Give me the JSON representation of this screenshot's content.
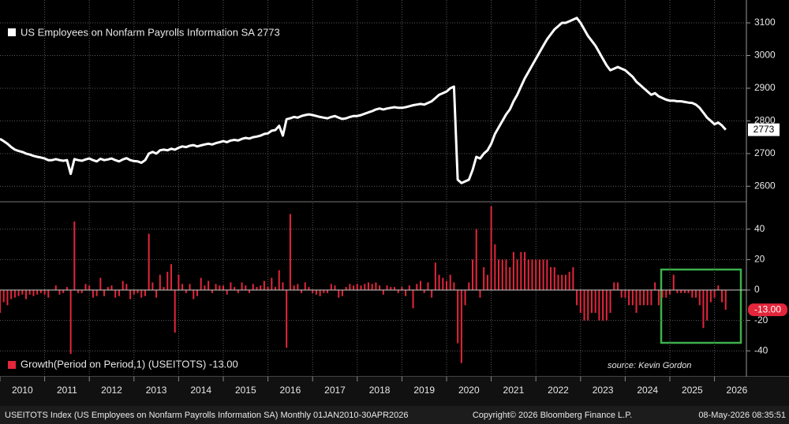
{
  "chart_data": [
    {
      "type": "line",
      "legend": "US Employees on Nonfarm Payrolls Information SA 2773",
      "color": "#ffffff",
      "ylim": [
        2555,
        3170
      ],
      "yticks": [
        2600,
        2700,
        2800,
        2900,
        3000,
        3100
      ],
      "grid": true,
      "values": [
        2745,
        2738,
        2730,
        2720,
        2712,
        2708,
        2705,
        2700,
        2697,
        2693,
        2690,
        2688,
        2685,
        2680,
        2680,
        2683,
        2680,
        2678,
        2680,
        2638,
        2683,
        2680,
        2678,
        2682,
        2685,
        2680,
        2676,
        2684,
        2680,
        2682,
        2685,
        2680,
        2676,
        2682,
        2686,
        2680,
        2677,
        2676,
        2672,
        2680,
        2700,
        2705,
        2700,
        2710,
        2712,
        2710,
        2715,
        2712,
        2718,
        2722,
        2720,
        2724,
        2726,
        2722,
        2725,
        2728,
        2730,
        2728,
        2732,
        2735,
        2738,
        2735,
        2740,
        2742,
        2740,
        2745,
        2748,
        2746,
        2750,
        2752,
        2755,
        2760,
        2762,
        2770,
        2772,
        2785,
        2755,
        2805,
        2808,
        2812,
        2810,
        2815,
        2818,
        2820,
        2818,
        2815,
        2812,
        2810,
        2808,
        2812,
        2815,
        2810,
        2806,
        2808,
        2812,
        2815,
        2815,
        2818,
        2822,
        2826,
        2830,
        2835,
        2838,
        2835,
        2838,
        2840,
        2842,
        2840,
        2840,
        2842,
        2845,
        2848,
        2850,
        2852,
        2850,
        2855,
        2860,
        2870,
        2880,
        2885,
        2890,
        2900,
        2905,
        2620,
        2610,
        2615,
        2620,
        2650,
        2690,
        2685,
        2700,
        2710,
        2730,
        2760,
        2780,
        2800,
        2820,
        2835,
        2860,
        2880,
        2905,
        2930,
        2950,
        2970,
        2990,
        3010,
        3030,
        3050,
        3065,
        3080,
        3090,
        3100,
        3100,
        3105,
        3110,
        3115,
        3100,
        3080,
        3060,
        3045,
        3030,
        3010,
        2990,
        2970,
        2955,
        2960,
        2965,
        2960,
        2955,
        2945,
        2935,
        2920,
        2910,
        2900,
        2890,
        2880,
        2885,
        2875,
        2870,
        2865,
        2862,
        2862,
        2860,
        2860,
        2858,
        2856,
        2855,
        2850,
        2840,
        2825,
        2810,
        2800,
        2790,
        2795,
        2786,
        2773
      ]
    },
    {
      "type": "bar",
      "legend": "Growth(Period on Period,1) (USEITOTS) -13.00",
      "color": "#e3263b",
      "ylim": [
        -57,
        57
      ],
      "yticks": [
        -40,
        -20,
        0,
        20,
        40
      ],
      "grid": true,
      "last_value_label": "-13.00",
      "xticks": [
        2010,
        2011,
        2012,
        2013,
        2014,
        2015,
        2016,
        2017,
        2018,
        2019,
        2020,
        2021,
        2022,
        2023,
        2024,
        2025,
        2026
      ],
      "annotation": "source: Kevin Gordon",
      "values": [
        -15,
        -8,
        -10,
        -6,
        -5,
        -4,
        -3,
        -6,
        -3,
        -4,
        -3,
        -2,
        -3,
        -5,
        0,
        3,
        -3,
        -2,
        2,
        -42,
        45,
        -2,
        -2,
        4,
        3,
        -5,
        -4,
        8,
        -4,
        2,
        3,
        -5,
        -4,
        6,
        4,
        -6,
        -3,
        -2,
        -5,
        -4,
        37,
        5,
        -5,
        10,
        2,
        12,
        17,
        -28,
        10,
        4,
        -2,
        4,
        -6,
        -4,
        8,
        3,
        6,
        -2,
        4,
        3,
        3,
        -3,
        5,
        2,
        -2,
        5,
        3,
        -2,
        4,
        2,
        3,
        6,
        2,
        8,
        2,
        13,
        5,
        -38,
        50,
        3,
        4,
        -2,
        5,
        2,
        -2,
        -3,
        -4,
        -2,
        -2,
        4,
        3,
        -5,
        -4,
        2,
        4,
        3,
        4,
        3,
        4,
        5,
        4,
        5,
        3,
        -3,
        3,
        2,
        2,
        -2,
        2,
        -4,
        3,
        -12,
        4,
        6,
        -2,
        5,
        -5,
        18,
        10,
        8,
        6,
        10,
        5,
        -35,
        -48,
        -10,
        5,
        20,
        40,
        -5,
        15,
        10,
        55,
        30,
        20,
        20,
        20,
        15,
        25,
        20,
        25,
        25,
        20,
        20,
        20,
        20,
        20,
        20,
        15,
        15,
        10,
        10,
        10,
        12,
        15,
        -10,
        -15,
        -20,
        -20,
        -15,
        -15,
        -20,
        -20,
        -20,
        -15,
        5,
        5,
        -5,
        -5,
        -10,
        -10,
        -15,
        -10,
        -10,
        -10,
        -10,
        5,
        -10,
        -5,
        -5,
        -3,
        10,
        -2,
        -2,
        -2,
        -2,
        -5,
        -5,
        -10,
        -25,
        -20,
        -8,
        -5,
        3,
        -8,
        -13
      ]
    }
  ],
  "footer": {
    "left": "USEITOTS Index (US Employees on Nonfarm Payrolls Information SA) Monthly 01JAN2010-30APR2026",
    "center": "Copyright© 2026 Bloomberg Finance L.P.",
    "right": "08-May-2026 08:35:51"
  }
}
